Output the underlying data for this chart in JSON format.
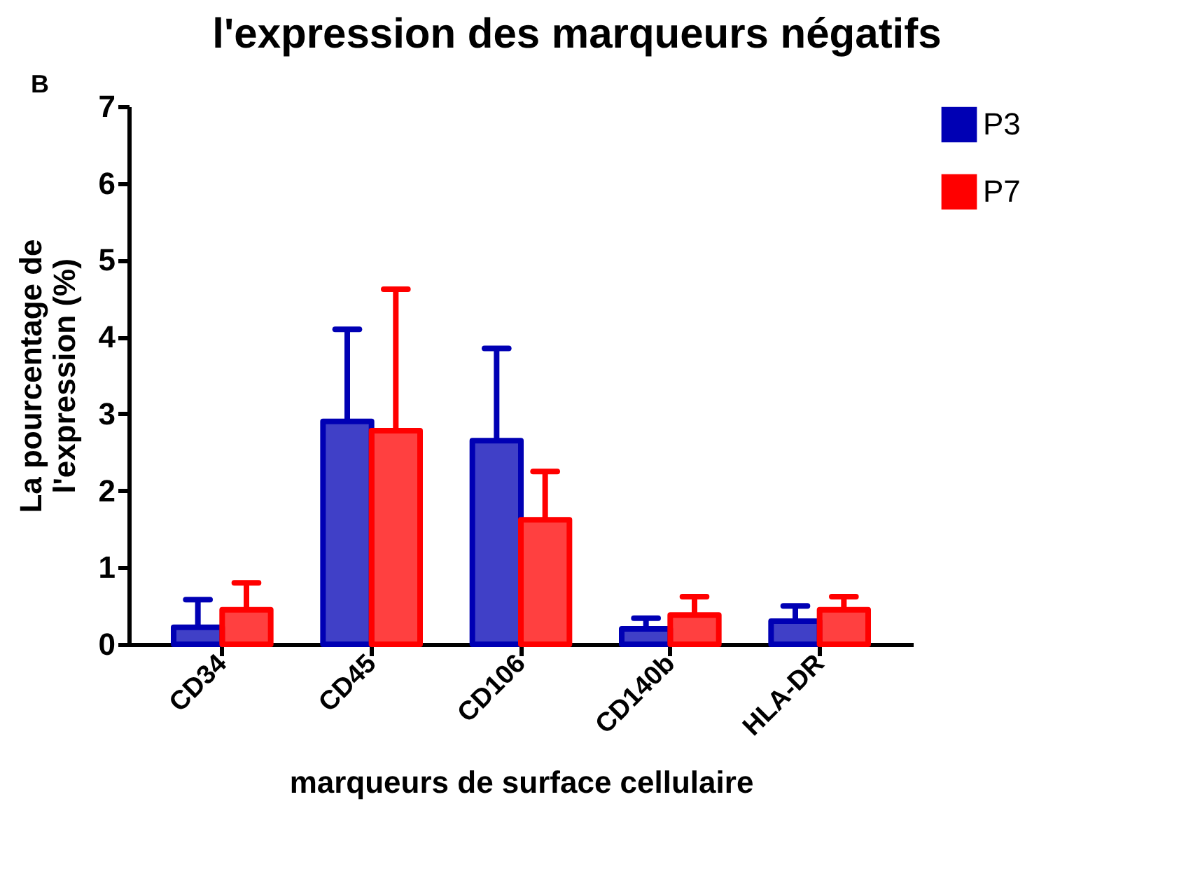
{
  "chart_data": {
    "type": "bar",
    "title": "l'expression des marqueurs négatifs",
    "annotations": [
      "B"
    ],
    "xlabel": "marqueurs de surface cellulaire",
    "ylabel": "La pourcentage de l'expression (%)",
    "categories": [
      "CD34",
      "CD45",
      "CD106",
      "CD140b",
      "HLA-DR"
    ],
    "series": [
      {
        "name": "P3",
        "color": "#0000b4",
        "values": [
          0.22,
          2.9,
          2.65,
          0.2,
          0.3
        ],
        "errors": [
          [
            0.22,
            0.58
          ],
          [
            2.9,
            4.1
          ],
          [
            2.65,
            3.85
          ],
          [
            0.2,
            0.34
          ],
          [
            0.3,
            0.5
          ]
        ]
      },
      {
        "name": "P7",
        "color": "#ff0000",
        "values": [
          0.45,
          2.78,
          1.62,
          0.38,
          0.45
        ],
        "errors": [
          [
            0.45,
            0.8
          ],
          [
            2.78,
            4.62
          ],
          [
            1.62,
            2.25
          ],
          [
            0.38,
            0.62
          ],
          [
            0.45,
            0.62
          ]
        ]
      }
    ],
    "ylim": [
      0,
      7
    ],
    "yticks": [
      0,
      1,
      2,
      3,
      4,
      5,
      6,
      7
    ],
    "grid": false,
    "legend": "top right"
  }
}
